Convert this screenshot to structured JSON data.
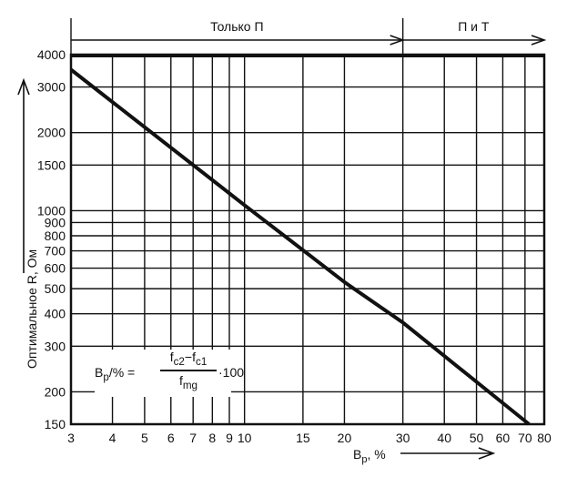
{
  "chart_data": {
    "type": "line",
    "title": "",
    "xlabel": "B_p, %",
    "ylabel": "Оптимальное R, Ом",
    "x_scale": "log",
    "y_scale": "log",
    "xlim": [
      3,
      80
    ],
    "ylim": [
      150,
      4000
    ],
    "grid": true,
    "x_ticks": [
      3,
      4,
      5,
      6,
      7,
      8,
      9,
      10,
      15,
      20,
      30,
      40,
      50,
      60,
      70,
      80
    ],
    "x_tick_labels": [
      "3",
      "4",
      "5",
      "6",
      "7",
      "8",
      "9",
      "10",
      "15",
      "20",
      "30",
      "40",
      "50",
      "60",
      "70",
      "80"
    ],
    "y_ticks": [
      150,
      200,
      300,
      400,
      500,
      600,
      700,
      800,
      900,
      1000,
      1500,
      2000,
      3000,
      4000
    ],
    "y_tick_labels": [
      "150",
      "200",
      "300",
      "400",
      "500",
      "600",
      "700",
      "800",
      "900",
      "1000",
      "1500",
      "2000",
      "3000",
      "4000"
    ],
    "series": [
      {
        "x": [
          3,
          10,
          20,
          30,
          72
        ],
        "y": [
          3500,
          1050,
          530,
          370,
          150
        ]
      }
    ],
    "regions": [
      {
        "label": "Только П",
        "x_from": 3,
        "x_to": 30
      },
      {
        "label": "П и Т",
        "x_from": 30,
        "x_to": 80
      }
    ],
    "formula": {
      "lhs": "B",
      "lhs_sub": "p",
      "lhs_tail": "/% =",
      "num_a": "f",
      "num_a_sub": "c2",
      "num_minus": "−",
      "num_b": "f",
      "num_b_sub": "c1",
      "den": "f",
      "den_sub": "mg",
      "tail": "·100"
    }
  }
}
